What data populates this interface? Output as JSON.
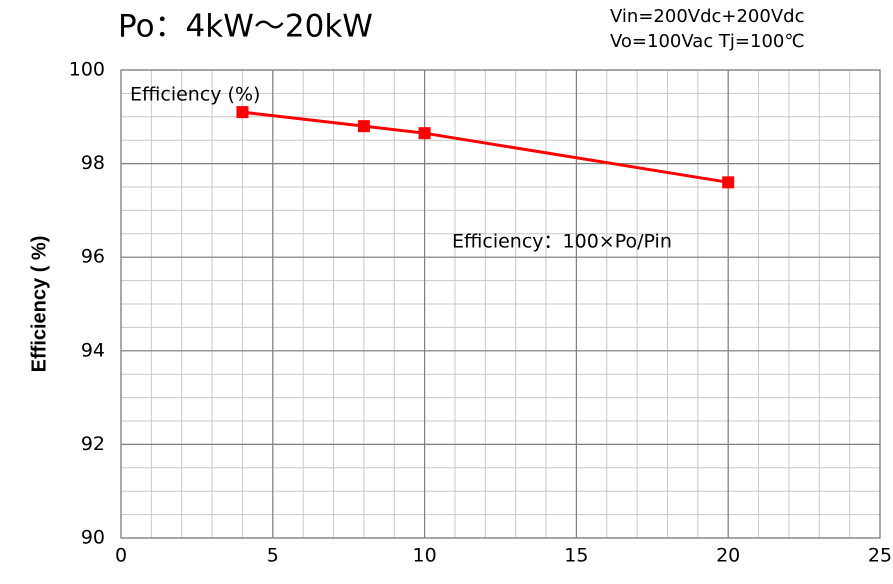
{
  "chart_data": {
    "type": "line",
    "title": "Po：4kW～20kW",
    "annotations": [
      "Vin=200Vdc+200Vdc",
      "Vo=100Vac Tj=100℃",
      "Efficiency (%)",
      "Efficiency：100×Po/Pin"
    ],
    "y_label": "Efficiency ( %)",
    "series": [
      {
        "name": "Efficiency",
        "color": "#ff0000",
        "x": [
          4,
          8,
          10,
          20
        ],
        "values": [
          99.1,
          98.8,
          98.65,
          97.6
        ]
      }
    ],
    "xlim": [
      0,
      25
    ],
    "xticks": [
      0,
      5,
      10,
      15,
      20,
      25
    ],
    "ylim": [
      90,
      100
    ],
    "yticks": [
      90,
      92,
      94,
      96,
      98,
      100
    ],
    "grid": true,
    "minor_grid": {
      "x": 1,
      "y": 0.5
    }
  }
}
